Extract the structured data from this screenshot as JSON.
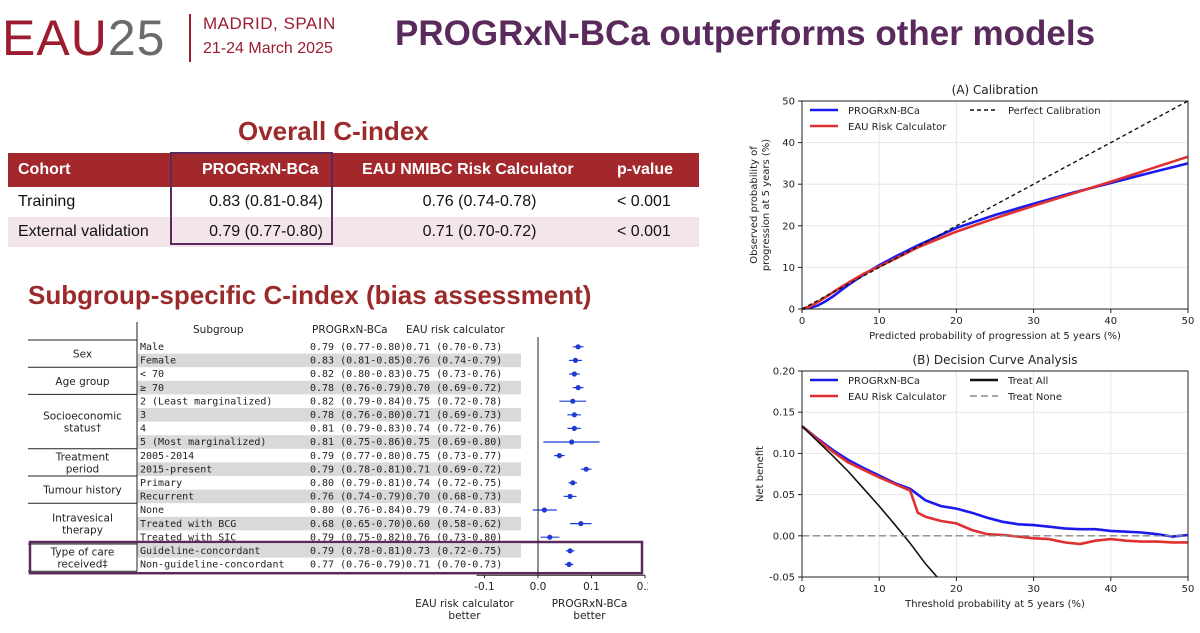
{
  "header": {
    "logo_eau": "EAU",
    "logo_num": "25",
    "city": "MADRID, SPAIN",
    "date": "21-24 March 2025",
    "title": "PROGRxN-BCa outperforms other models"
  },
  "overall": {
    "title": "Overall C-index",
    "headers": [
      "Cohort",
      "PROGRxN-BCa",
      "EAU NMIBC Risk Calculator",
      "p-value"
    ],
    "rows": [
      {
        "cohort": "Training",
        "prog": "0.83 (0.81-0.84)",
        "eau": "0.76 (0.74-0.78)",
        "p": "< 0.001"
      },
      {
        "cohort": "External validation",
        "prog": "0.79 (0.77-0.80)",
        "eau": "0.71 (0.70-0.72)",
        "p": "< 0.001"
      }
    ]
  },
  "subgroup": {
    "title": "Subgroup-specific C-index (bias assessment)",
    "col_subgroup": "Subgroup",
    "col_prog": "PROGRxN-BCa",
    "col_eau": "EAU risk calculator",
    "groups": [
      {
        "label": [
          "Sex"
        ],
        "rows": 2
      },
      {
        "label": [
          "Age group"
        ],
        "rows": 2
      },
      {
        "label": [
          "Socioeconomic",
          "status†"
        ],
        "rows": 4
      },
      {
        "label": [
          "Treatment",
          "period"
        ],
        "rows": 2
      },
      {
        "label": [
          "Tumour history"
        ],
        "rows": 2
      },
      {
        "label": [
          "Intravesical",
          "therapy"
        ],
        "rows": 3
      },
      {
        "label": [
          "Type of care",
          "received‡"
        ],
        "rows": 2
      }
    ],
    "rows": [
      {
        "name": "Male",
        "prog": "0.79 (0.77-0.80)",
        "eau": "0.71 (0.70-0.73)",
        "diff": 0.075,
        "lo": 0.065,
        "hi": 0.085
      },
      {
        "name": "Female",
        "prog": "0.83 (0.81-0.85)",
        "eau": "0.76 (0.74-0.79)",
        "diff": 0.07,
        "lo": 0.058,
        "hi": 0.082
      },
      {
        "name": "< 70",
        "prog": "0.82 (0.80-0.83)",
        "eau": "0.75 (0.73-0.76)",
        "diff": 0.068,
        "lo": 0.058,
        "hi": 0.078
      },
      {
        "name": "≥ 70",
        "prog": "0.78 (0.76-0.79)",
        "eau": "0.70 (0.69-0.72)",
        "diff": 0.075,
        "lo": 0.065,
        "hi": 0.085
      },
      {
        "name": "2 (Least marginalized)",
        "prog": "0.82 (0.79-0.84)",
        "eau": "0.75 (0.72-0.78)",
        "diff": 0.065,
        "lo": 0.04,
        "hi": 0.09
      },
      {
        "name": "3",
        "prog": "0.78 (0.76-0.80)",
        "eau": "0.71 (0.69-0.73)",
        "diff": 0.068,
        "lo": 0.055,
        "hi": 0.08
      },
      {
        "name": "4",
        "prog": "0.81 (0.79-0.83)",
        "eau": "0.74 (0.72-0.76)",
        "diff": 0.068,
        "lo": 0.055,
        "hi": 0.08
      },
      {
        "name": "5 (Most marginalized)",
        "prog": "0.81 (0.75-0.86)",
        "eau": "0.75 (0.69-0.80)",
        "diff": 0.063,
        "lo": 0.01,
        "hi": 0.115
      },
      {
        "name": "2005-2014",
        "prog": "0.79 (0.77-0.80)",
        "eau": "0.75 (0.73-0.77)",
        "diff": 0.04,
        "lo": 0.03,
        "hi": 0.05
      },
      {
        "name": "2015-present",
        "prog": "0.79 (0.78-0.81)",
        "eau": "0.71 (0.69-0.72)",
        "diff": 0.09,
        "lo": 0.08,
        "hi": 0.1
      },
      {
        "name": "Primary",
        "prog": "0.80 (0.79-0.81)",
        "eau": "0.74 (0.72-0.75)",
        "diff": 0.065,
        "lo": 0.057,
        "hi": 0.073
      },
      {
        "name": "Recurrent",
        "prog": "0.76 (0.74-0.79)",
        "eau": "0.70 (0.68-0.73)",
        "diff": 0.06,
        "lo": 0.048,
        "hi": 0.072
      },
      {
        "name": "None",
        "prog": "0.80 (0.76-0.84)",
        "eau": "0.79 (0.74-0.83)",
        "diff": 0.012,
        "lo": -0.01,
        "hi": 0.035
      },
      {
        "name": "Treated with BCG",
        "prog": "0.68 (0.65-0.70)",
        "eau": "0.60 (0.58-0.62)",
        "diff": 0.08,
        "lo": 0.06,
        "hi": 0.1
      },
      {
        "name": "Treated with SIC",
        "prog": "0.79 (0.75-0.82)",
        "eau": "0.76 (0.73-0.80)",
        "diff": 0.022,
        "lo": 0.005,
        "hi": 0.04
      },
      {
        "name": "Guideline-concordant",
        "prog": "0.79 (0.78-0.81)",
        "eau": "0.73 (0.72-0.75)",
        "diff": 0.06,
        "lo": 0.052,
        "hi": 0.068
      },
      {
        "name": "Non-guideline-concordant",
        "prog": "0.77 (0.76-0.79)",
        "eau": "0.71 (0.70-0.73)",
        "diff": 0.058,
        "lo": 0.05,
        "hi": 0.066
      }
    ],
    "x_ticks": [
      "-0.1",
      "0.0",
      "0.1",
      "0.2"
    ],
    "x_label_left": [
      "EAU risk calculator",
      "better"
    ],
    "x_label_right": [
      "PROGRxN-BCa",
      "better"
    ],
    "colors": {
      "stripe": "#d9d9d9",
      "marker": "#1f3bd6",
      "box": "#5b2a5d"
    }
  },
  "chart_data": [
    {
      "type": "line",
      "title": "(A) Calibration",
      "xlabel": "Predicted probability of progression at 5 years (%)",
      "ylabel": [
        "Observed probability of",
        "progression at 5 years (%)"
      ],
      "xlim": [
        0,
        50
      ],
      "ylim": [
        0,
        50
      ],
      "xticks": [
        "0",
        "10",
        "20",
        "30",
        "40",
        "50"
      ],
      "yticks": [
        "0",
        "10",
        "20",
        "30",
        "40",
        "50"
      ],
      "grid": true,
      "legend": "top-left",
      "series": [
        {
          "name": "PROGRxN-BCa",
          "color": "#1a1aee",
          "dash": false,
          "x": [
            0,
            1,
            2,
            3,
            4,
            5,
            6,
            8,
            10,
            12,
            15,
            20,
            25,
            30,
            35,
            40,
            45,
            50
          ],
          "y": [
            0,
            0.3,
            0.8,
            1.8,
            3.0,
            4.4,
            5.8,
            8.3,
            10.5,
            12.5,
            15.3,
            19.5,
            22.6,
            25.3,
            27.9,
            30.3,
            32.7,
            35.0
          ]
        },
        {
          "name": "EAU Risk Calculator",
          "color": "#e03030",
          "dash": false,
          "x": [
            0,
            1,
            2,
            3,
            4,
            5,
            6,
            8,
            10,
            12,
            15,
            20,
            25,
            30,
            35,
            40,
            45,
            50
          ],
          "y": [
            0,
            0.6,
            1.6,
            2.8,
            4.0,
            5.2,
            6.3,
            8.5,
            10.2,
            12.0,
            14.8,
            18.6,
            21.8,
            24.8,
            27.7,
            30.6,
            33.6,
            36.6
          ]
        },
        {
          "name": "Perfect Calibration",
          "color": "#111111",
          "dash": true,
          "x": [
            0,
            50
          ],
          "y": [
            0,
            50
          ]
        }
      ]
    },
    {
      "type": "line",
      "title": "(B) Decision Curve Analysis",
      "xlabel": "Threshold probability at 5 years (%)",
      "ylabel": [
        "Net benefit"
      ],
      "xlim": [
        0,
        50
      ],
      "ylim": [
        -0.05,
        0.2
      ],
      "xticks": [
        "0",
        "10",
        "20",
        "30",
        "40",
        "50"
      ],
      "yticks": [
        "-0.05",
        "0.00",
        "0.05",
        "0.10",
        "0.15",
        "0.20"
      ],
      "grid": true,
      "legend": "top-left",
      "series": [
        {
          "name": "PROGRxN-BCa",
          "color": "#1a1aee",
          "dash": false,
          "x": [
            0,
            2,
            4,
            6,
            8,
            10,
            12,
            14,
            15,
            16,
            18,
            20,
            22,
            24,
            26,
            28,
            30,
            32,
            34,
            36,
            38,
            40,
            42,
            44,
            46,
            48,
            50
          ],
          "y": [
            0.133,
            0.118,
            0.104,
            0.092,
            0.082,
            0.073,
            0.064,
            0.057,
            0.05,
            0.043,
            0.036,
            0.033,
            0.028,
            0.022,
            0.017,
            0.014,
            0.013,
            0.011,
            0.009,
            0.008,
            0.008,
            0.006,
            0.005,
            0.004,
            0.002,
            -0.001,
            0.001
          ]
        },
        {
          "name": "EAU Risk Calculator",
          "color": "#e03030",
          "dash": false,
          "x": [
            0,
            2,
            4,
            6,
            8,
            10,
            12,
            14,
            15,
            16,
            18,
            20,
            22,
            24,
            26,
            28,
            30,
            32,
            34,
            36,
            38,
            40,
            42,
            44,
            46,
            48,
            50
          ],
          "y": [
            0.133,
            0.117,
            0.102,
            0.089,
            0.08,
            0.071,
            0.063,
            0.055,
            0.028,
            0.023,
            0.018,
            0.015,
            0.007,
            0.002,
            0.001,
            -0.001,
            -0.003,
            -0.004,
            -0.008,
            -0.01,
            -0.006,
            -0.004,
            -0.006,
            -0.007,
            -0.007,
            -0.008,
            -0.008
          ]
        },
        {
          "name": "Treat All",
          "color": "#111111",
          "dash": false,
          "x": [
            0,
            2,
            4,
            6,
            8,
            10,
            12,
            14,
            16,
            17.5
          ],
          "y": [
            0.133,
            0.115,
            0.097,
            0.078,
            0.057,
            0.036,
            0.014,
            -0.009,
            -0.034,
            -0.05
          ]
        },
        {
          "name": "Treat None",
          "color": "#888888",
          "dash": true,
          "x": [
            0,
            50
          ],
          "y": [
            0,
            0
          ]
        }
      ]
    }
  ]
}
